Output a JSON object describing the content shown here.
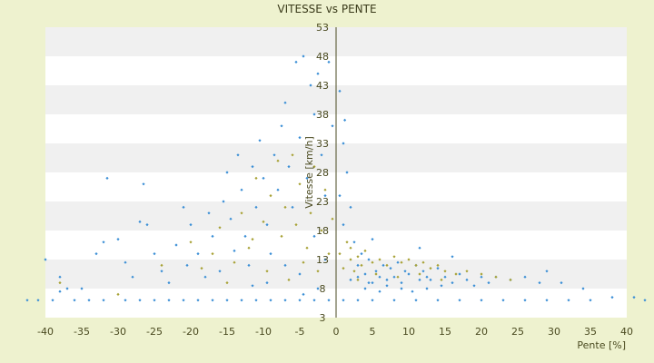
{
  "chart_data": {
    "type": "scatter",
    "title": "VITESSE vs PENTE",
    "xlabel": "Pente [%]",
    "ylabel": "Vitesse [km/h]",
    "xlim": [
      -40,
      40
    ],
    "ylim": [
      3,
      53
    ],
    "x_ticks": [
      -40,
      -35,
      -30,
      -25,
      -20,
      -15,
      -10,
      -5,
      0,
      5,
      10,
      15,
      20,
      25,
      30,
      35,
      40
    ],
    "y_ticks": [
      3,
      8,
      13,
      18,
      23,
      28,
      33,
      38,
      43,
      48,
      53
    ],
    "grid": "alternating horizontal bands",
    "legend": "none",
    "series": [
      {
        "color": "#3b8fd6",
        "marker": "diamond",
        "values": [
          [
            -42.5,
            6.0
          ],
          [
            -41.0,
            6.0
          ],
          [
            -39.0,
            6.0
          ],
          [
            -38.0,
            7.5
          ],
          [
            -36.0,
            6.0
          ],
          [
            -34.0,
            6.0
          ],
          [
            -32.0,
            6.0
          ],
          [
            -29.0,
            6.0
          ],
          [
            -27.0,
            6.0
          ],
          [
            -25.0,
            6.0
          ],
          [
            -23.0,
            6.0
          ],
          [
            -21.0,
            6.0
          ],
          [
            -19.0,
            6.0
          ],
          [
            -17.0,
            6.0
          ],
          [
            -15.0,
            6.0
          ],
          [
            -13.0,
            6.0
          ],
          [
            -11.0,
            6.0
          ],
          [
            -9.0,
            6.0
          ],
          [
            -7.0,
            6.0
          ],
          [
            -5.0,
            6.0
          ],
          [
            -3.0,
            6.0
          ],
          [
            -1.0,
            6.0
          ],
          [
            1.0,
            6.0
          ],
          [
            3.0,
            6.0
          ],
          [
            5.0,
            6.0
          ],
          [
            8.0,
            6.0
          ],
          [
            11.0,
            6.0
          ],
          [
            14.0,
            6.0
          ],
          [
            17.0,
            6.0
          ],
          [
            20.0,
            6.0
          ],
          [
            23.0,
            6.0
          ],
          [
            26.0,
            6.0
          ],
          [
            29.0,
            6.0
          ],
          [
            32.0,
            6.0
          ],
          [
            35.0,
            6.0
          ],
          [
            38.0,
            6.5
          ],
          [
            41.0,
            6.5
          ],
          [
            42.5,
            6.0
          ],
          [
            -40.0,
            13.0
          ],
          [
            -38.0,
            10.0
          ],
          [
            -37.0,
            8.0
          ],
          [
            -35.0,
            8.0
          ],
          [
            -33.0,
            14.0
          ],
          [
            -32.0,
            16.0
          ],
          [
            -31.5,
            27.0
          ],
          [
            -30.0,
            16.5
          ],
          [
            -29.0,
            12.5
          ],
          [
            -28.0,
            10.0
          ],
          [
            -27.0,
            19.5
          ],
          [
            -26.5,
            26.0
          ],
          [
            -26.0,
            19.0
          ],
          [
            -25.0,
            14.0
          ],
          [
            -24.0,
            11.0
          ],
          [
            -23.0,
            9.0
          ],
          [
            -22.0,
            15.5
          ],
          [
            -21.0,
            22.0
          ],
          [
            -20.5,
            12.0
          ],
          [
            -20.0,
            19.0
          ],
          [
            -19.0,
            14.0
          ],
          [
            -18.0,
            10.0
          ],
          [
            -17.5,
            21.0
          ],
          [
            -17.0,
            17.0
          ],
          [
            -16.0,
            11.0
          ],
          [
            -15.5,
            23.0
          ],
          [
            -15.0,
            28.0
          ],
          [
            -14.5,
            20.0
          ],
          [
            -14.0,
            14.5
          ],
          [
            -13.5,
            31.0
          ],
          [
            -13.0,
            25.0
          ],
          [
            -12.5,
            17.0
          ],
          [
            -12.0,
            12.0
          ],
          [
            -11.5,
            29.0
          ],
          [
            -11.0,
            22.0
          ],
          [
            -10.5,
            33.5
          ],
          [
            -10.0,
            27.0
          ],
          [
            -9.5,
            19.0
          ],
          [
            -9.0,
            14.0
          ],
          [
            -8.5,
            31.0
          ],
          [
            -8.0,
            25.0
          ],
          [
            -7.5,
            36.0
          ],
          [
            -7.0,
            40.0
          ],
          [
            -6.5,
            29.0
          ],
          [
            -6.0,
            22.0
          ],
          [
            -5.5,
            47.0
          ],
          [
            -5.0,
            34.0
          ],
          [
            -4.5,
            48.0
          ],
          [
            -4.0,
            27.0
          ],
          [
            -3.5,
            43.0
          ],
          [
            -3.0,
            38.0
          ],
          [
            -2.5,
            45.0
          ],
          [
            -2.0,
            31.0
          ],
          [
            -1.5,
            24.0
          ],
          [
            -1.0,
            47.0
          ],
          [
            -0.5,
            36.0
          ],
          [
            -3.0,
            17.0
          ],
          [
            -1.5,
            13.0
          ],
          [
            -5.0,
            10.5
          ],
          [
            -7.0,
            12.0
          ],
          [
            -9.5,
            9.0
          ],
          [
            -11.5,
            8.5
          ],
          [
            -2.5,
            8.0
          ],
          [
            -4.5,
            7.0
          ],
          [
            0.5,
            42.0
          ],
          [
            1.0,
            33.0
          ],
          [
            1.5,
            28.0
          ],
          [
            2.0,
            22.0
          ],
          [
            2.5,
            16.0
          ],
          [
            3.0,
            12.0
          ],
          [
            3.5,
            14.0
          ],
          [
            4.0,
            10.5
          ],
          [
            4.5,
            13.0
          ],
          [
            5.0,
            9.0
          ],
          [
            5.5,
            11.0
          ],
          [
            6.0,
            10.0
          ],
          [
            6.5,
            12.0
          ],
          [
            7.0,
            9.5
          ],
          [
            7.5,
            11.5
          ],
          [
            8.0,
            10.0
          ],
          [
            8.5,
            12.5
          ],
          [
            9.0,
            9.0
          ],
          [
            9.5,
            11.0
          ],
          [
            10.0,
            10.5
          ],
          [
            11.0,
            12.0
          ],
          [
            11.5,
            9.5
          ],
          [
            12.0,
            11.0
          ],
          [
            12.5,
            10.0
          ],
          [
            13.0,
            9.5
          ],
          [
            14.0,
            11.5
          ],
          [
            15.0,
            10.0
          ],
          [
            16.0,
            9.0
          ],
          [
            17.0,
            10.5
          ],
          [
            18.0,
            9.5
          ],
          [
            19.0,
            8.5
          ],
          [
            20.0,
            10.0
          ],
          [
            21.0,
            9.0
          ],
          [
            22.0,
            10.0
          ],
          [
            24.0,
            9.5
          ],
          [
            26.0,
            10.0
          ],
          [
            28.0,
            9.0
          ],
          [
            29.0,
            11.0
          ],
          [
            31.0,
            9.0
          ],
          [
            34.0,
            8.0
          ],
          [
            16.0,
            13.5
          ],
          [
            11.5,
            15.0
          ],
          [
            5.0,
            16.5
          ],
          [
            1.0,
            19.0
          ],
          [
            0.5,
            24.0
          ],
          [
            1.2,
            37.0
          ],
          [
            4.0,
            8.0
          ],
          [
            6.0,
            7.5
          ],
          [
            2.0,
            9.5
          ],
          [
            3.0,
            10.0
          ],
          [
            4.5,
            9.0
          ],
          [
            7.0,
            8.5
          ],
          [
            9.0,
            8.0
          ],
          [
            10.5,
            7.5
          ],
          [
            12.5,
            8.0
          ],
          [
            14.5,
            8.5
          ]
        ]
      },
      {
        "color": "#a8a236",
        "marker": "diamond",
        "values": [
          [
            -38.0,
            9.0
          ],
          [
            -30.0,
            7.0
          ],
          [
            -24.0,
            12.0
          ],
          [
            -20.0,
            16.0
          ],
          [
            -18.5,
            11.5
          ],
          [
            -16.0,
            18.5
          ],
          [
            -14.0,
            12.5
          ],
          [
            -13.0,
            21.0
          ],
          [
            -12.0,
            15.0
          ],
          [
            -11.0,
            27.0
          ],
          [
            -10.0,
            19.5
          ],
          [
            -9.0,
            24.0
          ],
          [
            -8.0,
            30.0
          ],
          [
            -7.5,
            17.0
          ],
          [
            -7.0,
            22.0
          ],
          [
            -6.0,
            31.0
          ],
          [
            -5.5,
            19.0
          ],
          [
            -5.0,
            26.0
          ],
          [
            -4.0,
            15.0
          ],
          [
            -3.5,
            21.0
          ],
          [
            -3.0,
            29.0
          ],
          [
            -2.0,
            18.0
          ],
          [
            -1.5,
            25.0
          ],
          [
            -1.0,
            14.0
          ],
          [
            -0.5,
            20.0
          ],
          [
            -9.5,
            11.0
          ],
          [
            -6.5,
            9.5
          ],
          [
            -11.5,
            16.5
          ],
          [
            -15.0,
            9.0
          ],
          [
            -17.0,
            14.0
          ],
          [
            -2.5,
            11.0
          ],
          [
            -4.5,
            12.5
          ],
          [
            0.5,
            14.0
          ],
          [
            1.0,
            11.5
          ],
          [
            1.5,
            16.0
          ],
          [
            2.0,
            13.0
          ],
          [
            2.5,
            11.0
          ],
          [
            3.0,
            13.5
          ],
          [
            3.5,
            12.0
          ],
          [
            4.0,
            14.5
          ],
          [
            5.0,
            12.5
          ],
          [
            6.0,
            13.0
          ],
          [
            7.0,
            12.0
          ],
          [
            8.0,
            13.5
          ],
          [
            9.0,
            12.5
          ],
          [
            10.0,
            13.0
          ],
          [
            11.0,
            12.0
          ],
          [
            12.0,
            12.5
          ],
          [
            13.0,
            11.5
          ],
          [
            14.0,
            12.0
          ],
          [
            15.0,
            11.0
          ],
          [
            16.5,
            10.5
          ],
          [
            18.0,
            11.0
          ],
          [
            20.0,
            10.5
          ],
          [
            22.0,
            10.0
          ],
          [
            24.0,
            9.5
          ],
          [
            2.0,
            15.0
          ],
          [
            3.0,
            9.5
          ],
          [
            5.5,
            10.5
          ],
          [
            8.5,
            10.0
          ],
          [
            11.5,
            10.5
          ],
          [
            14.5,
            9.5
          ]
        ]
      }
    ]
  }
}
